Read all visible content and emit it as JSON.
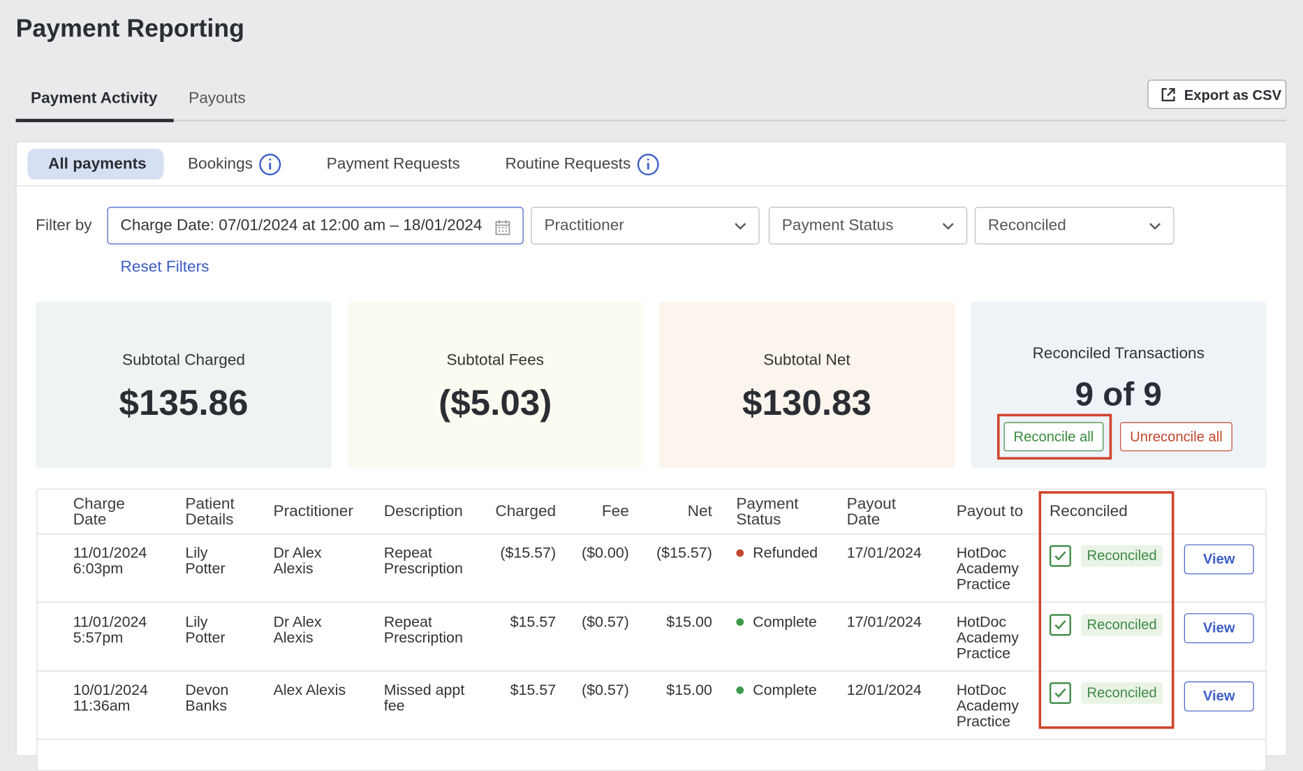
{
  "header": {
    "title": "Payment Reporting"
  },
  "tabs": [
    "Payment Activity",
    "Payouts"
  ],
  "export_button": "Export as CSV",
  "subtabs": [
    "All payments",
    "Bookings",
    "Payment Requests",
    "Routine Requests"
  ],
  "filters": {
    "label": "Filter by",
    "date": "Charge Date: 07/01/2024 at 12:00 am – 18/01/2024",
    "practitioner": "Practitioner",
    "payment_status": "Payment Status",
    "reconciled": "Reconciled",
    "reset": "Reset Filters"
  },
  "summary": [
    {
      "label": "Subtotal Charged",
      "value": "$135.86"
    },
    {
      "label": "Subtotal Fees",
      "value": "($5.03)"
    },
    {
      "label": "Subtotal Net",
      "value": "$130.83"
    }
  ],
  "reconciled_summary": {
    "label": "Reconciled Transactions",
    "value": "9 of 9",
    "reconcile_all": "Reconcile all",
    "unreconcile_all": "Unreconcile all"
  },
  "table": {
    "columns": [
      "Charge Date",
      "Patient Details",
      "Practitioner",
      "Description",
      "Charged",
      "Fee",
      "Net",
      "Payment Status",
      "Payout Date",
      "Payout to",
      "Reconciled"
    ],
    "rows": [
      {
        "charge_date": "11/01/2024 6:03pm",
        "patient": "Lily Potter",
        "practitioner": "Dr Alex Alexis",
        "description": "Repeat Prescription",
        "charged": "($15.57)",
        "fee": "($0.00)",
        "net": "($15.57)",
        "status": "Refunded",
        "status_color": "#c0462c",
        "payout_date": "17/01/2024",
        "payout_to": "HotDoc Academy Practice",
        "reconciled": "Reconciled",
        "action": "View"
      },
      {
        "charge_date": "11/01/2024 5:57pm",
        "patient": "Lily Potter",
        "practitioner": "Dr Alex Alexis",
        "description": "Repeat Prescription",
        "charged": "$15.57",
        "fee": "($0.57)",
        "net": "$15.00",
        "status": "Complete",
        "status_color": "#3e9a4a",
        "payout_date": "17/01/2024",
        "payout_to": "HotDoc Academy Practice",
        "reconciled": "Reconciled",
        "action": "View"
      },
      {
        "charge_date": "10/01/2024 11:36am",
        "patient": "Devon Banks",
        "practitioner": "Alex Alexis",
        "description": "Missed appt fee",
        "charged": "$15.57",
        "fee": "($0.57)",
        "net": "$15.00",
        "status": "Complete",
        "status_color": "#3e9a4a",
        "payout_date": "12/01/2024",
        "payout_to": "HotDoc Academy Practice",
        "reconciled": "Reconciled",
        "action": "View"
      }
    ]
  }
}
